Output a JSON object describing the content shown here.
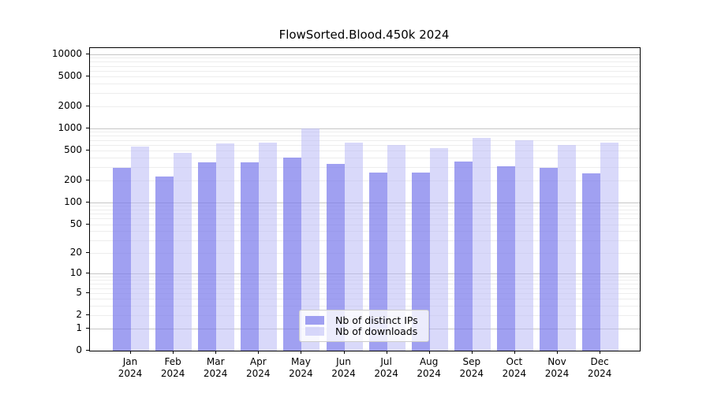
{
  "figure": {
    "background": "#ffffff"
  },
  "chart_data": {
    "type": "bar",
    "title": "FlowSorted.Blood.450k 2024",
    "year": "2024",
    "categories": [
      "Jan",
      "Feb",
      "Mar",
      "Apr",
      "May",
      "Jun",
      "Jul",
      "Aug",
      "Sep",
      "Oct",
      "Nov",
      "Dec"
    ],
    "series": [
      {
        "key": "distinct-ips",
        "name": "Nb of distinct IPs",
        "color": "rgba(124,124,235,0.72)",
        "solid_color": "#a1a1f1",
        "values": [
          290,
          225,
          350,
          350,
          400,
          330,
          250,
          250,
          355,
          310,
          290,
          245
        ]
      },
      {
        "key": "downloads",
        "name": "Nb of downloads",
        "color": "rgba(186,186,246,0.55)",
        "solid_color": "#d9d9fa",
        "values": [
          570,
          470,
          620,
          640,
          1000,
          640,
          600,
          540,
          740,
          690,
          600,
          640
        ]
      }
    ],
    "yscale": "log1p",
    "yticks": [
      0,
      1,
      2,
      5,
      10,
      20,
      50,
      100,
      200,
      500,
      1000,
      2000,
      5000,
      10000
    ],
    "ylim": [
      0,
      12000
    ],
    "xlabel": "",
    "ylabel": "",
    "grid": {
      "axis": "y",
      "major_color": "#c6c6c6",
      "minor_color": "#ededed"
    },
    "legend": {
      "position": "inside-lower-center",
      "border_color": "#cccccc",
      "background": "rgba(255,255,255,0.8)"
    }
  }
}
